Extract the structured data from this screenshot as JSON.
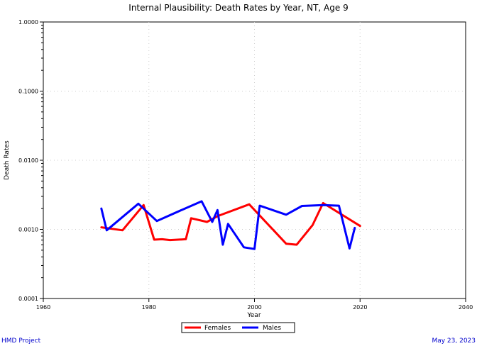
{
  "chart_data": {
    "type": "line",
    "title": "Internal Plausibility: Death Rates by Year, NT, Age 9",
    "xlabel": "Year",
    "ylabel": "Death Rates",
    "xlim": [
      1960,
      2040
    ],
    "ylim": [
      0.0001,
      1.0
    ],
    "yscale": "log",
    "x_ticks": [
      1960,
      1980,
      2000,
      2020,
      2040
    ],
    "y_ticks": [
      0.0001,
      0.001,
      0.01,
      0.1,
      1.0
    ],
    "x_tick_labels": [
      "1960",
      "1980",
      "2000",
      "2020",
      "2040"
    ],
    "y_tick_labels": [
      "0.0001",
      "0.0010",
      "0.0100",
      "0.1000",
      "1.0000"
    ],
    "grid": true,
    "legend_position": "bottom-center",
    "series": [
      {
        "name": "Females",
        "color": "#ff0000",
        "points": [
          [
            1971,
            0.00107
          ],
          [
            1975,
            0.00097
          ],
          [
            1979,
            0.00225
          ],
          [
            1981,
            0.00071
          ],
          [
            1982.5,
            0.00072
          ],
          [
            1984,
            0.0007
          ],
          [
            1987,
            0.00072
          ],
          [
            1988,
            0.00145
          ],
          [
            1991,
            0.00128
          ],
          [
            1993,
            0.00155
          ],
          [
            1999,
            0.0023
          ],
          [
            2006,
            0.00062
          ],
          [
            2008,
            0.0006
          ],
          [
            2011,
            0.00115
          ],
          [
            2013,
            0.0024
          ],
          [
            2020,
            0.00112
          ]
        ]
      },
      {
        "name": "Males",
        "color": "#0000ff",
        "points": [
          [
            1971,
            0.002
          ],
          [
            1972,
            0.00097
          ],
          [
            1978,
            0.00235
          ],
          [
            1981.5,
            0.00132
          ],
          [
            1986.5,
            0.00195
          ],
          [
            1990,
            0.00255
          ],
          [
            1992,
            0.00128
          ],
          [
            1993,
            0.0019
          ],
          [
            1994,
            0.0006
          ],
          [
            1995,
            0.0012
          ],
          [
            1998,
            0.00055
          ],
          [
            2000,
            0.00052
          ],
          [
            2001,
            0.0022
          ],
          [
            2006,
            0.00163
          ],
          [
            2009,
            0.00218
          ],
          [
            2013,
            0.00225
          ],
          [
            2016,
            0.0022
          ],
          [
            2018,
            0.00053
          ],
          [
            2019,
            0.00105
          ]
        ]
      }
    ]
  },
  "footer": {
    "left": "HMD Project",
    "right": "May 23, 2023"
  }
}
